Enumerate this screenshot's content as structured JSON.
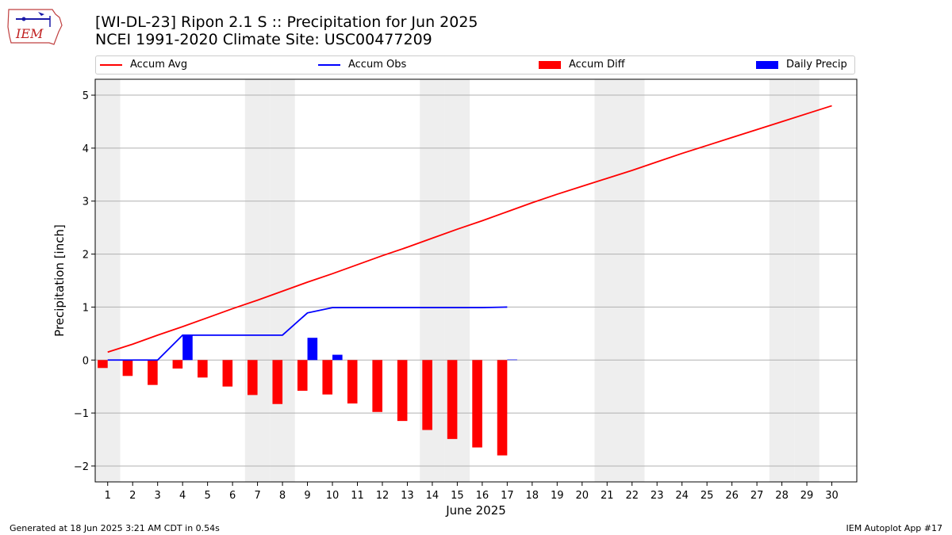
{
  "logo": {
    "text": "IEM"
  },
  "title_line1": "[WI-DL-23] Ripon 2.1 S :: Precipitation for Jun 2025",
  "title_line2": "NCEI 1991-2020 Climate Site: USC00477209",
  "legend": [
    {
      "label": "Accum Avg",
      "color": "#ff0000",
      "kind": "line"
    },
    {
      "label": "Accum Obs",
      "color": "#0000ff",
      "kind": "line"
    },
    {
      "label": "Accum Diff",
      "color": "#ff0000",
      "kind": "box"
    },
    {
      "label": "Daily Precip",
      "color": "#0000ff",
      "kind": "box"
    }
  ],
  "footer_left": "Generated at 18 Jun 2025 3:21 AM CDT in 0.54s",
  "footer_right": "IEM Autoplot App #17",
  "chart_data": {
    "type": "bar",
    "xlabel": "June 2025",
    "ylabel": "Precipitation [inch]",
    "xlim": [
      0.5,
      31
    ],
    "ylim": [
      -2.3,
      5.3
    ],
    "yticks": [
      -2,
      -1,
      0,
      1,
      2,
      3,
      4,
      5
    ],
    "ytick_labels": [
      "−2",
      "−1",
      "0",
      "1",
      "2",
      "3",
      "4",
      "5"
    ],
    "days": [
      1,
      2,
      3,
      4,
      5,
      6,
      7,
      8,
      9,
      10,
      11,
      12,
      13,
      14,
      15,
      16,
      17,
      18,
      19,
      20,
      21,
      22,
      23,
      24,
      25,
      26,
      27,
      28,
      29,
      30
    ],
    "weekend_days": [
      1,
      7,
      8,
      14,
      15,
      21,
      22,
      28,
      29
    ],
    "grid": "horizontal",
    "series": [
      {
        "name": "Accum Avg",
        "kind": "line",
        "color": "#ff0000",
        "values": [
          0.15,
          0.3,
          0.47,
          0.63,
          0.8,
          0.97,
          1.13,
          1.3,
          1.47,
          1.63,
          1.8,
          1.97,
          2.13,
          2.3,
          2.47,
          2.63,
          2.8,
          2.97,
          3.13,
          3.28,
          3.43,
          3.58,
          3.74,
          3.9,
          4.05,
          4.2,
          4.35,
          4.5,
          4.65,
          4.8
        ]
      },
      {
        "name": "Accum Obs",
        "kind": "line",
        "color": "#0000ff",
        "values": [
          0.0,
          0.0,
          0.0,
          0.47,
          0.47,
          0.47,
          0.47,
          0.47,
          0.89,
          0.99,
          0.99,
          0.99,
          0.99,
          0.99,
          0.99,
          0.99,
          1.0
        ]
      },
      {
        "name": "Accum Diff",
        "kind": "bar",
        "color": "#ff0000",
        "values": [
          -0.15,
          -0.3,
          -0.47,
          -0.16,
          -0.33,
          -0.5,
          -0.66,
          -0.83,
          -0.58,
          -0.65,
          -0.82,
          -0.98,
          -1.15,
          -1.32,
          -1.49,
          -1.65,
          -1.8
        ]
      },
      {
        "name": "Daily Precip",
        "kind": "bar",
        "color": "#0000ff",
        "values": [
          0.0,
          0.0,
          0.0,
          0.47,
          0.0,
          0.0,
          0.0,
          0.0,
          0.42,
          0.1,
          0.0,
          0.0,
          0.0,
          0.0,
          0.0,
          0.0,
          0.01
        ]
      }
    ]
  }
}
